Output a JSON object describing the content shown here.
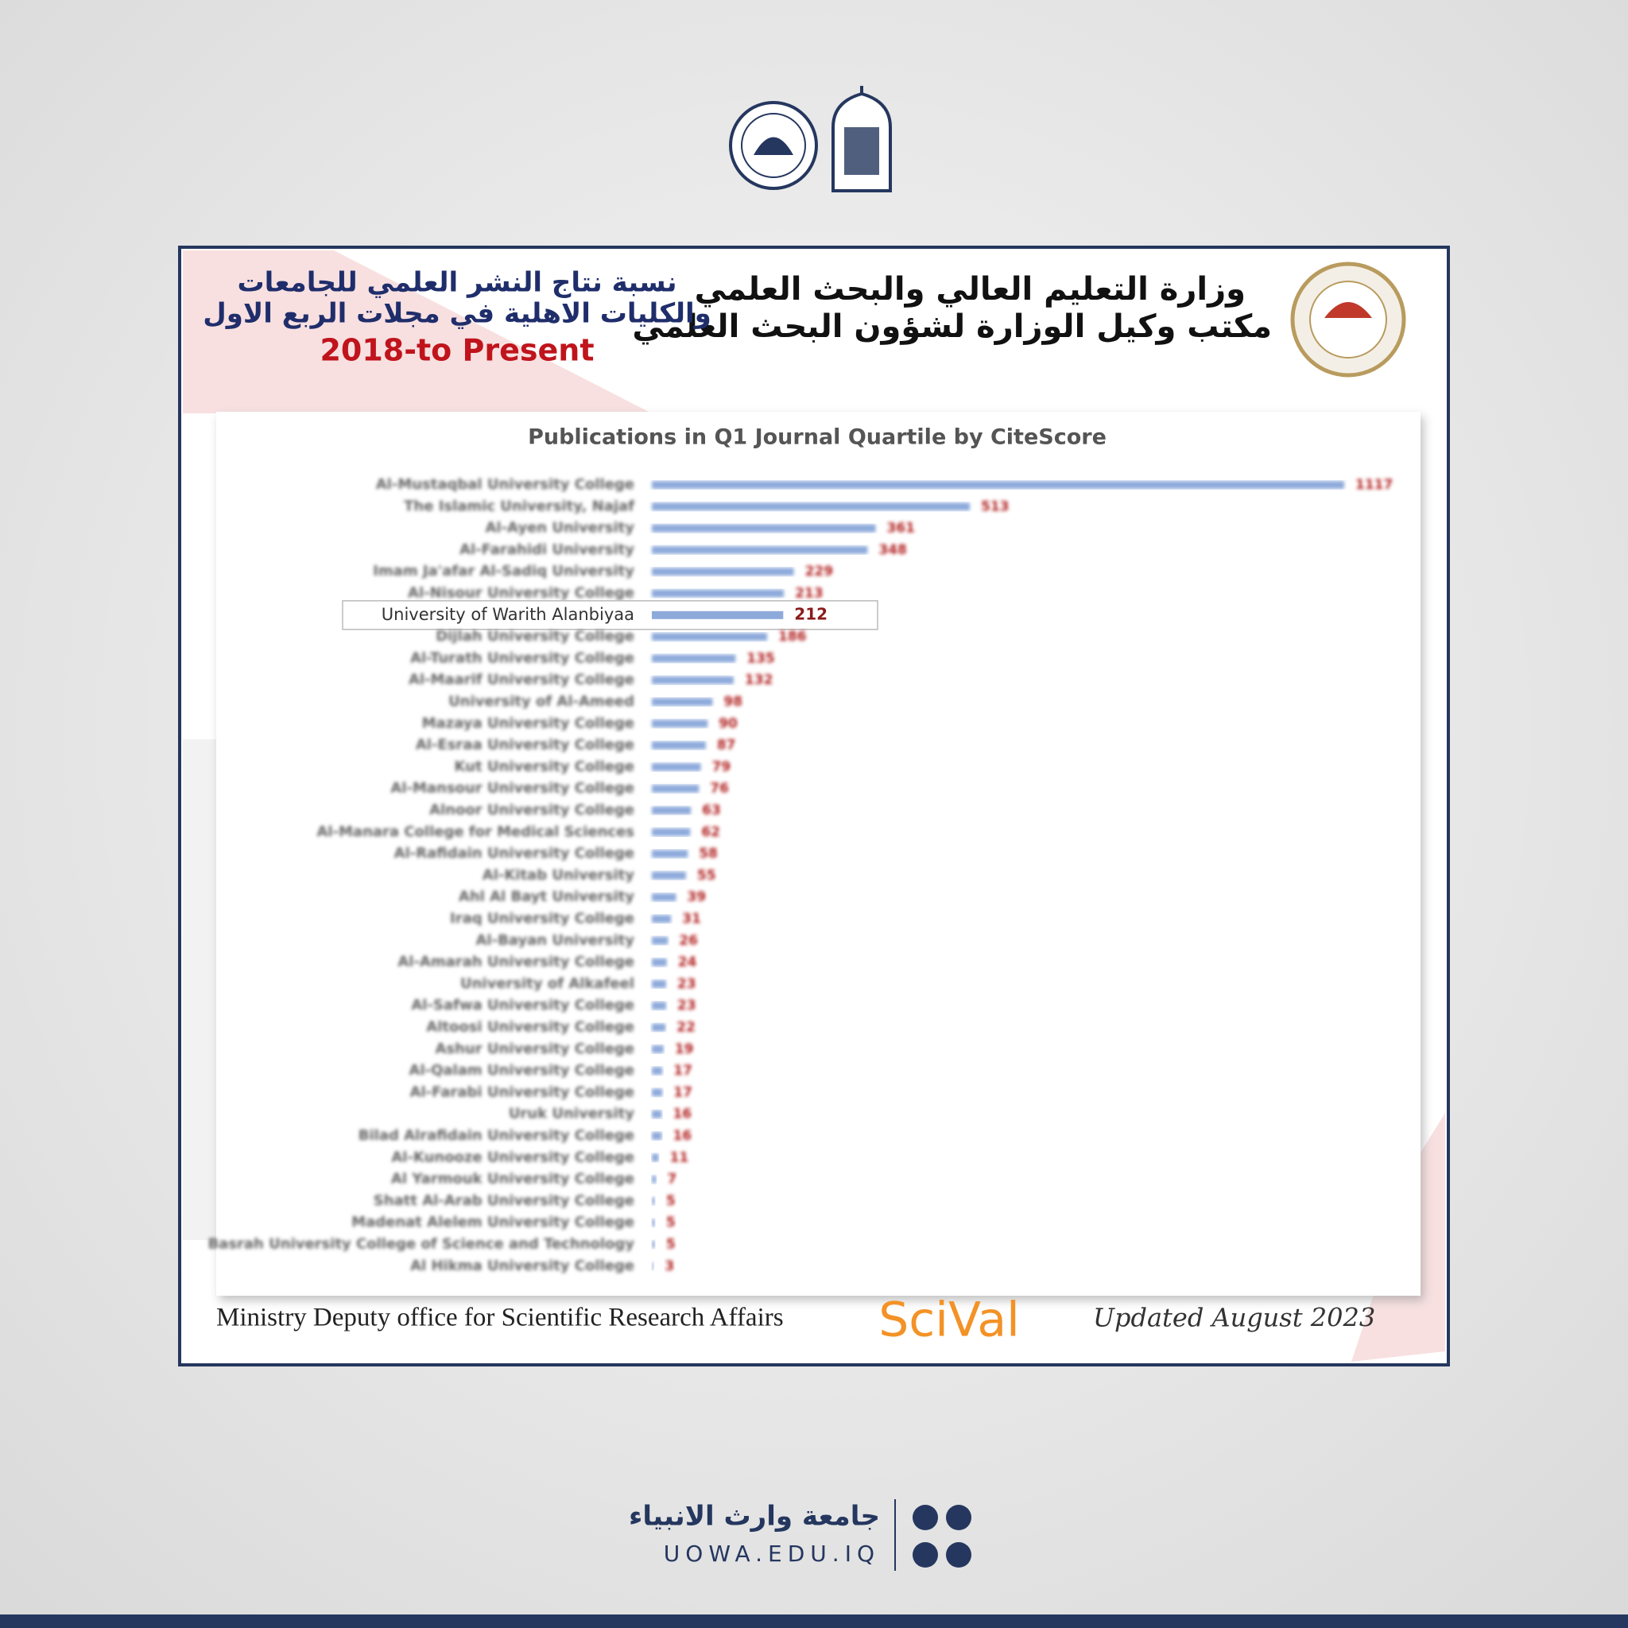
{
  "header": {
    "title_lines": [
      "نسبة  نتاج النشر العلمي للجامعات",
      "والكليات الاهلية في مجلات الربع الاول"
    ],
    "period": "2018-to Present",
    "ministry_lines": [
      "وزارة التعليم العالي والبحث العلمي",
      "مكتب وكيل الوزارة لشؤون البحث العلمي"
    ]
  },
  "chart_data": {
    "type": "bar",
    "orientation": "horizontal",
    "title": "Publications in Q1 Journal Quartile by CiteScore",
    "categories": [
      "Al-Mustaqbal University College",
      "The Islamic University, Najaf",
      "Al-Ayen University",
      "Al-Farahidi University",
      "Imam Ja'afar Al-Sadiq University",
      "Al-Nisour University College",
      "University of Warith Alanbiyaa",
      "Dijlah University College",
      "Al-Turath University College",
      "Al-Maarif University College",
      "University of Al-Ameed",
      "Mazaya University College",
      "Al-Esraa University College",
      "Kut University College",
      "Al-Mansour University College",
      "Alnoor University College",
      "Al-Manara College for Medical Sciences",
      "Al-Rafidain University College",
      "Al-Kitab University",
      "Ahl Al Bayt University",
      "Iraq University College",
      "Al-Bayan University",
      "Al-Amarah University College",
      "University of Alkafeel",
      "Al-Safwa University College",
      "Altoosi University College",
      "Ashur University College",
      "Al-Qalam University College",
      "Al-Farabi University College",
      "Uruk University",
      "Bilad Alrafidain University College",
      "Al-Kunooze University College",
      "Al Yarmouk University College",
      "Shatt Al-Arab University College",
      "Madenat Alelem University College",
      "Basrah University College of Science and Technology",
      "Al Hikma University College"
    ],
    "values": [
      1117,
      513,
      361,
      348,
      229,
      213,
      212,
      186,
      135,
      132,
      98,
      90,
      87,
      79,
      76,
      63,
      62,
      58,
      55,
      39,
      31,
      26,
      24,
      23,
      23,
      22,
      19,
      17,
      17,
      16,
      16,
      11,
      7,
      5,
      5,
      5,
      3
    ],
    "color": "#8eaadb",
    "label_color": "#b22222",
    "highlight": 6
  },
  "footer": {
    "office": "Ministry Deputy office for Scientific Research Affairs",
    "source": "SciVal",
    "updated": "Updated August 2023"
  },
  "page_footer": {
    "name": "جامعة وارث الانبياء",
    "site": "UOWA.EDU.IQ"
  }
}
